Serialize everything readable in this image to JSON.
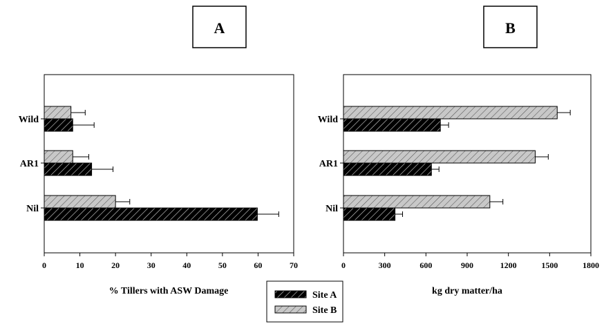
{
  "chart_data": [
    {
      "type": "bar",
      "orientation": "horizontal",
      "panel_label": "A",
      "xlabel": "% Tillers with ASW Damage",
      "ylabel": "",
      "categories": [
        "Wild",
        "AR1",
        "Nil"
      ],
      "xlim": [
        0,
        70
      ],
      "xticks": [
        "0",
        "10",
        "20",
        "30",
        "40",
        "50",
        "60",
        "70"
      ],
      "grid": false,
      "series": [
        {
          "name": "Site B",
          "values": [
            7.5,
            8,
            20
          ],
          "errors": [
            4,
            4.5,
            4
          ]
        },
        {
          "name": "Site A",
          "values": [
            8,
            13.3,
            59.8
          ],
          "errors": [
            6,
            6,
            6
          ]
        }
      ]
    },
    {
      "type": "bar",
      "orientation": "horizontal",
      "panel_label": "B",
      "xlabel": "kg dry matter/ha",
      "ylabel": "",
      "categories": [
        "Wild",
        "AR1",
        "Nil"
      ],
      "xlim": [
        0,
        1800
      ],
      "xticks": [
        "0",
        "300",
        "600",
        "900",
        "1200",
        "1500",
        "1800"
      ],
      "grid": false,
      "series": [
        {
          "name": "Site B",
          "values": [
            1555,
            1395,
            1065
          ],
          "errors": [
            95,
            95,
            95
          ]
        },
        {
          "name": "Site A",
          "values": [
            705,
            640,
            375
          ],
          "errors": [
            60,
            55,
            55
          ]
        }
      ]
    }
  ],
  "legend": {
    "position": "bottom-center",
    "entries": [
      {
        "label": "Site A",
        "color": "#000000",
        "fill_pattern": "hatch-on-black"
      },
      {
        "label": "Site B",
        "color": "#c8c8c8",
        "fill_pattern": "hatch-on-gray"
      }
    ]
  },
  "colors": {
    "site_a": "#000000",
    "site_a_hatch": "#bdbdbd",
    "site_b": "#c8c8c8",
    "site_b_hatch": "#555555"
  }
}
